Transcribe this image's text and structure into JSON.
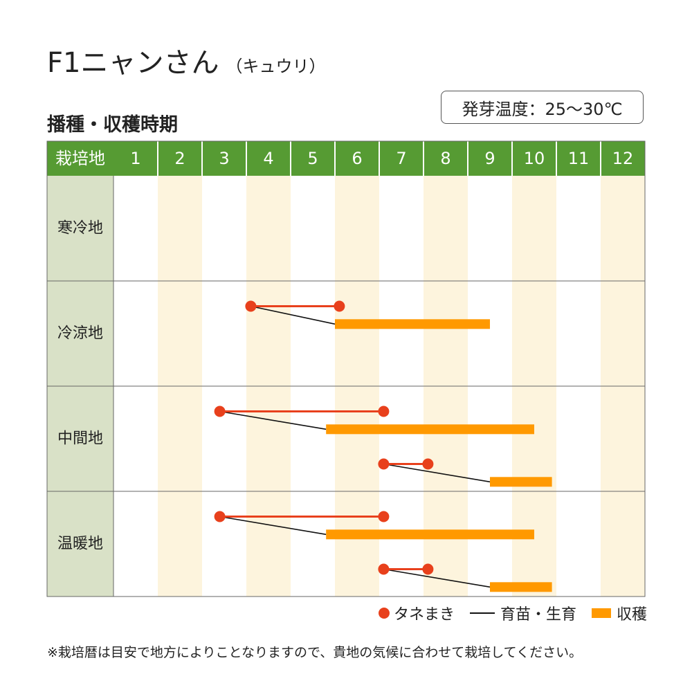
{
  "header": {
    "title": "F1ニャンさん",
    "title_sub": "（キュウリ）",
    "subtitle": "播種・収穫時期",
    "germination_temp": "発芽温度：25～30℃"
  },
  "legend": {
    "sowing": "タネまき",
    "nursery": "育苗・生育",
    "harvest": "収穫"
  },
  "note": "※栽培暦は目安で地方によりことなりますので、貴地の気候に合わせて栽培してください。",
  "colors": {
    "header_green": "#569b33",
    "region_bg": "#d9e1c7",
    "stripe": "#fdf4dd",
    "sowing_red": "#e8401c",
    "harvest_orange": "#ff9900",
    "nursery_line": "#111111"
  },
  "chart_data": {
    "type": "gantt",
    "row_header_label": "栽培地",
    "months": [
      "1",
      "2",
      "3",
      "4",
      "5",
      "6",
      "7",
      "8",
      "9",
      "10",
      "11",
      "12"
    ],
    "regions": [
      {
        "name": "寒冷地",
        "schedules": []
      },
      {
        "name": "冷涼地",
        "schedules": [
          {
            "sowing": [
              4.1,
              6.1
            ],
            "harvest": [
              6.0,
              9.5
            ]
          }
        ]
      },
      {
        "name": "中間地",
        "schedules": [
          {
            "sowing": [
              3.4,
              7.1
            ],
            "harvest": [
              5.8,
              10.5
            ]
          },
          {
            "sowing": [
              7.1,
              8.1
            ],
            "harvest": [
              9.5,
              10.9
            ]
          }
        ]
      },
      {
        "name": "温暖地",
        "schedules": [
          {
            "sowing": [
              3.4,
              7.1
            ],
            "harvest": [
              5.8,
              10.5
            ]
          },
          {
            "sowing": [
              7.1,
              8.1
            ],
            "harvest": [
              9.5,
              10.9
            ]
          }
        ]
      }
    ]
  }
}
